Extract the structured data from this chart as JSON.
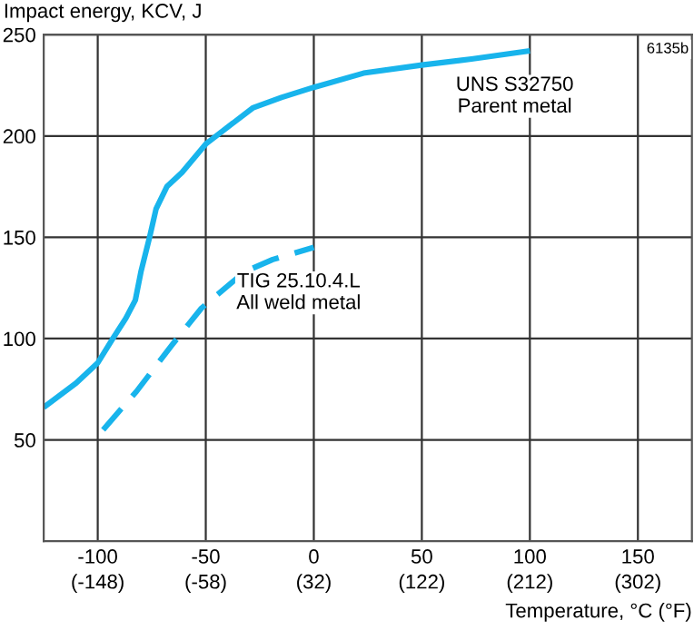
{
  "chart_data": {
    "type": "line",
    "ylabel": "Impact energy, KCV, J",
    "xlabel": "Temperature, °C (°F)",
    "series": [
      {
        "color": "#18b4ec",
        "line_style": "solid",
        "x": [
          -125,
          -110,
          -100,
          -93,
          -87,
          -82.6,
          -80,
          -76,
          -73,
          -68,
          -61,
          -50,
          -44,
          -28,
          -15,
          0,
          23,
          50,
          73,
          100
        ],
        "values": [
          66,
          78,
          88,
          100,
          110,
          119,
          133,
          150,
          164,
          175,
          182,
          196,
          201,
          214,
          219,
          224,
          231,
          235,
          238,
          242
        ]
      },
      {
        "color": "#18b4ec",
        "line_style": "dashed",
        "x": [
          -97.5,
          -82,
          -65.5,
          -52,
          -32,
          -19,
          0
        ],
        "values": [
          55,
          74,
          97,
          115,
          133,
          139,
          145
        ]
      }
    ],
    "xlim": [
      -125,
      175
    ],
    "ylim": [
      0,
      250
    ],
    "xticks": [
      -100,
      -50,
      0,
      50,
      100,
      150
    ],
    "x2lim": [
      -193,
      347
    ],
    "x2ticks": [
      {
        "value": -148,
        "label": "(-148)"
      },
      {
        "value": -58,
        "label": "(-58)"
      },
      {
        "value": 32,
        "label": "(32)"
      },
      {
        "value": 122,
        "label": "(122)"
      },
      {
        "value": 212,
        "label": "(212)"
      },
      {
        "value": 302,
        "label": "(302)"
      }
    ],
    "yticks": [
      50,
      100,
      150,
      200,
      250
    ],
    "grid": true,
    "legend": false,
    "annotations": [
      {
        "text": "UNS S32750\nParent metal",
        "x": 100,
        "y": 242
      },
      {
        "text": "TIG 25.10.4.L\nAll weld metal",
        "x": 0,
        "y": 145
      },
      "6135b"
    ]
  }
}
